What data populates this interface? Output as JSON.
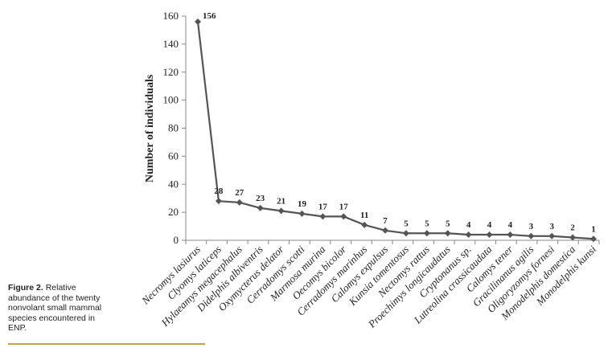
{
  "caption": {
    "figure_label": "Figure 2.",
    "text": "Relative abundance of the twenty nonvolant small mammal species encountered in ENP."
  },
  "chart_data": {
    "type": "line",
    "ylabel": "Number of individuals",
    "xlabel": "",
    "ylim": [
      0,
      160
    ],
    "yticks": [
      0,
      20,
      40,
      60,
      80,
      100,
      120,
      140,
      160
    ],
    "grid": false,
    "categories": [
      "Necromys lasiurus",
      "Clyomys laticeps",
      "Hylaeamys megacephalus",
      "Didelphis albiventris",
      "Oxymycterus delator",
      "Cerradomys scotti",
      "Marmosa murina",
      "Oecomys bicolor",
      "Cerradomys marinhus",
      "Calomys expulsus",
      "Kunsia tomentosus",
      "Nectomys rattus",
      "Proechimys longicaudatus",
      "Cryptonanus sp.",
      "Lutreolina crassicaudata",
      "Calomys tener",
      "Gracilinanus agilis",
      "Oligoryzomys fornesi",
      "Monodelphis domestica",
      "Monodelphis kunsi"
    ],
    "series": [
      {
        "values": [
          156,
          28,
          27,
          23,
          21,
          19,
          17,
          17,
          11,
          7,
          5,
          5,
          5,
          4,
          4,
          4,
          3,
          3,
          2,
          1
        ]
      }
    ],
    "data_labels": [
      "156",
      "28",
      "27",
      "23",
      "21",
      "19",
      "17",
      "17",
      "11",
      "7",
      "5",
      "5",
      "5",
      "4",
      "4",
      "4",
      "3",
      "3",
      "2",
      "1"
    ],
    "line_color": "#555555",
    "marker": "diamond"
  }
}
